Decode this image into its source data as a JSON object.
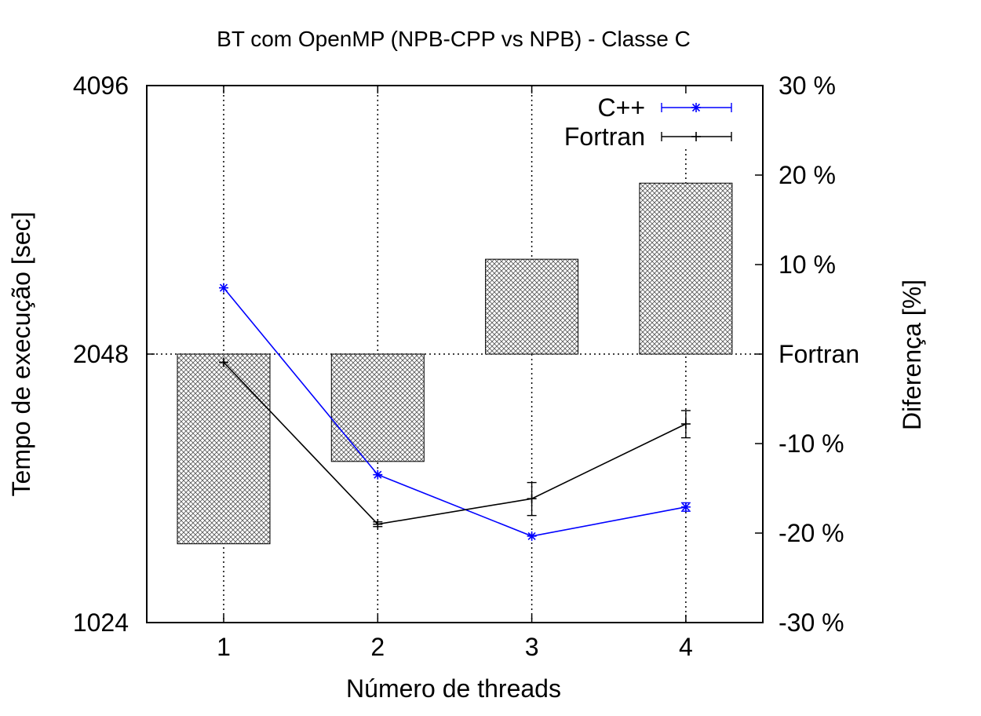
{
  "chart_data": {
    "type": "bar+line",
    "title": "BT com OpenMP (NPB-CPP vs NPB) - Classe C",
    "xlabel": "Número de threads",
    "ylabel": "Tempo de execução [sec]",
    "y2label": "Diferença [%]",
    "x_ticks": [
      "1",
      "2",
      "3",
      "4"
    ],
    "y_ticks": [
      "1024",
      "2048",
      "4096"
    ],
    "y_scale": "log2",
    "ylim": [
      1024,
      4096
    ],
    "y2_ticks": [
      "-30 %",
      "-20 %",
      "-10 %",
      "Fortran",
      "10 %",
      "20 %",
      "30 %"
    ],
    "y2_tick_values": [
      -30,
      -20,
      -10,
      0,
      10,
      20,
      30
    ],
    "y2lim": [
      -30,
      30
    ],
    "grid": "x-dotted",
    "legend_position": "top-right",
    "bars": {
      "axis": "y2",
      "pattern": "crosshatch",
      "x": [
        1,
        2,
        3,
        4
      ],
      "values": [
        -21.2,
        -12.0,
        10.6,
        19.1
      ]
    },
    "series": [
      {
        "name": "C++",
        "color": "#0000ff",
        "marker": "star",
        "x": [
          1,
          2,
          3,
          4
        ],
        "values": [
          2430,
          1500,
          1280,
          1380
        ],
        "err": [
          0,
          0,
          0,
          15
        ]
      },
      {
        "name": "Fortran",
        "color": "#000000",
        "marker": "plus",
        "x": [
          1,
          2,
          3,
          4
        ],
        "values": [
          2005,
          1320,
          1410,
          1710
        ],
        "err": [
          0,
          8,
          60,
          60
        ]
      }
    ]
  }
}
